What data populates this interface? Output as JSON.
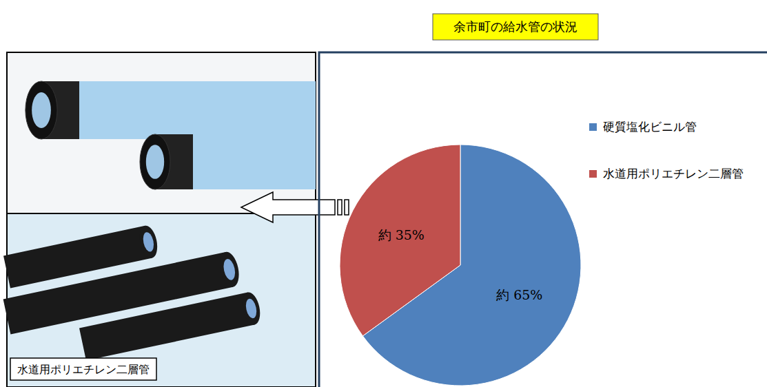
{
  "chart_data": {
    "type": "pie",
    "title": "余市町の給水管の状況",
    "categories": [
      "硬質塩化ビニル管",
      "水道用ポリエチレン二層管"
    ],
    "values": [
      65,
      35
    ],
    "value_labels": [
      "約 65%",
      "約 35%"
    ],
    "colors": [
      "#4F81BD",
      "#C0504D"
    ],
    "data_labels": true,
    "legend": "right"
  },
  "photo_panel": {
    "caption": "水道用ポリエチレン二層管"
  }
}
